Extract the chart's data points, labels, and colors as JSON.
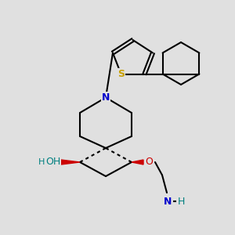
{
  "bg_color": "#e0e0e0",
  "bond_color": "#000000",
  "bond_width": 1.5,
  "S_color": "#c8a000",
  "N_color": "#0000cc",
  "O_color": "#cc0000",
  "OH_color": "#008080",
  "NH_color": "#0000cc",
  "figsize": [
    3.0,
    3.0
  ],
  "dpi": 100,
  "xlim": [
    0,
    10
  ],
  "ylim": [
    0,
    10
  ]
}
